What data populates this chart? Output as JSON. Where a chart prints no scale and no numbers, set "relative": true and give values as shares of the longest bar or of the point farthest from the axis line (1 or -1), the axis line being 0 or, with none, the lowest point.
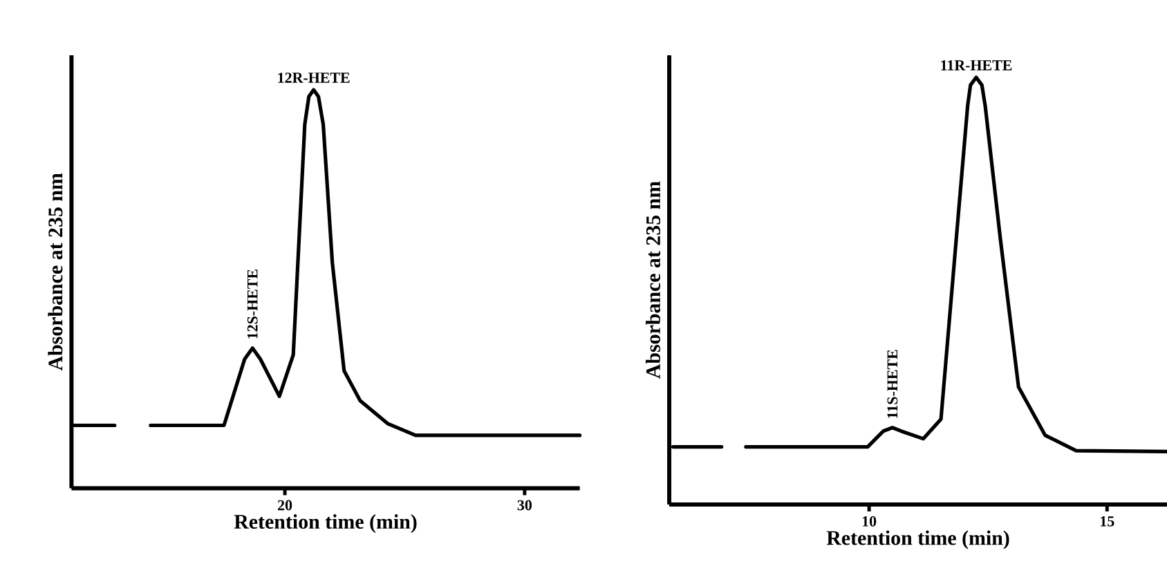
{
  "chart_data": [
    {
      "type": "line",
      "relative": true,
      "xlabel": "Retention time (min)",
      "ylabel": "Absorbance at 235 nm",
      "xlim": [
        11.1,
        32.3
      ],
      "xticks": [
        20,
        30
      ],
      "color": "#000000",
      "x": [
        11.2,
        12.9,
        13.6,
        14.4,
        17.46,
        18.32,
        18.65,
        18.98,
        19.77,
        20.35,
        20.83,
        21.0,
        21.2,
        21.4,
        21.6,
        21.98,
        22.47,
        23.14,
        24.3,
        25.45,
        32.3
      ],
      "values": [
        0.158,
        0.158,
        null,
        0.158,
        0.158,
        0.324,
        0.352,
        0.324,
        0.231,
        0.335,
        0.913,
        0.983,
        1,
        0.983,
        0.913,
        0.566,
        0.295,
        0.22,
        0.162,
        0.133,
        0.133
      ],
      "annotations": [
        {
          "text": "12S-HETE",
          "x": 18.65,
          "y": 0.352
        },
        {
          "text": "12R-HETE",
          "x": 21.2,
          "y": 1
        }
      ]
    },
    {
      "type": "line",
      "relative": true,
      "xlabel": "Retention time (min)",
      "ylabel": "Absorbance at 235 nm",
      "xlim": [
        5.8,
        16.26
      ],
      "xticks": [
        10,
        15
      ],
      "color": "#000000",
      "x": [
        5.88,
        6.9,
        7.15,
        7.41,
        9.97,
        10.3,
        10.49,
        10.67,
        11.14,
        11.51,
        11.83,
        12.07,
        12.13,
        12.25,
        12.37,
        12.44,
        12.76,
        13.14,
        13.7,
        14.35,
        16.26
      ],
      "values": [
        0.135,
        0.135,
        null,
        0.135,
        0.135,
        0.172,
        0.18,
        0.172,
        0.154,
        0.2,
        0.62,
        0.933,
        0.982,
        1,
        0.982,
        0.933,
        0.62,
        0.275,
        0.162,
        0.126,
        0.124
      ],
      "annotations": [
        {
          "text": "11S-HETE",
          "x": 10.49,
          "y": 0.18
        },
        {
          "text": "11R-HETE",
          "x": 12.25,
          "y": 1
        }
      ]
    }
  ]
}
